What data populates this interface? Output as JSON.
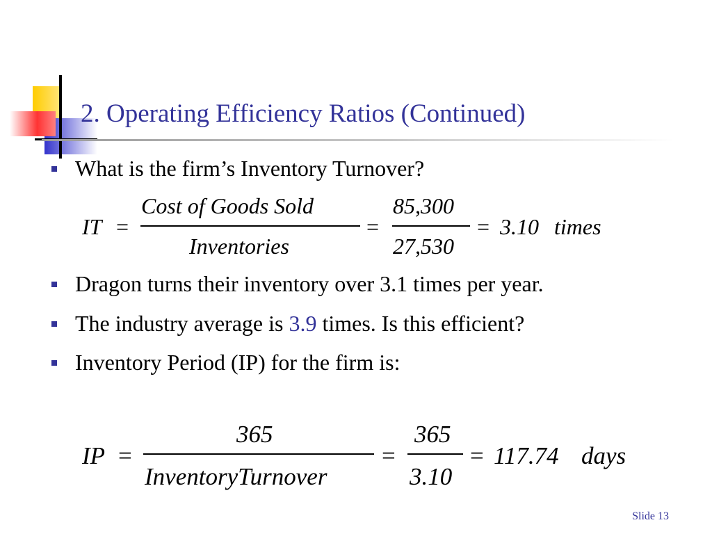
{
  "slide": {
    "title": "2. Operating Efficiency Ratios (Continued)",
    "slide_number": "Slide 13"
  },
  "bullets": [
    {
      "text": "What is the firm’s Inventory Turnover?"
    },
    {
      "text": "Dragon turns their inventory over 3.1 times per year."
    },
    {
      "text_before": "The industry average is ",
      "highlight": "3.9",
      "text_after": " times.  Is this efficient?"
    },
    {
      "text": "Inventory Period (IP) for the firm is:"
    }
  ],
  "equations": {
    "inventory_turnover": {
      "lhs": "IT",
      "equals": "=",
      "numerator": "Cost of  Goods Sold",
      "denominator": "Inventories",
      "num_value": "85,300",
      "den_value": "27,530",
      "result": "3.10",
      "unit": "times"
    },
    "inventory_period": {
      "lhs": "IP",
      "equals": "=",
      "numerator": "365",
      "denominator": "InventoryTurnover",
      "num_value": "365",
      "den_value": "3.10",
      "result": "117.74",
      "unit": "days"
    }
  },
  "colors": {
    "title": "#333399",
    "bullet_marker": "#333399",
    "highlight": "#333399",
    "deco_yellow": "#ffcc00",
    "deco_blue": "#3333cc",
    "deco_red": "#ff3333"
  }
}
